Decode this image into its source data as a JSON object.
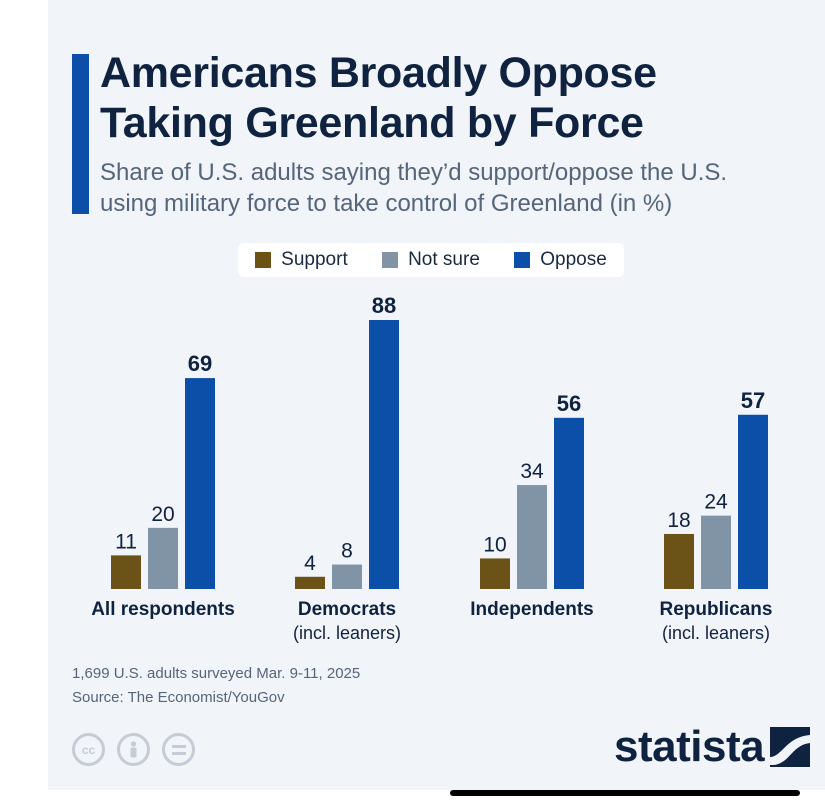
{
  "header": {
    "title_line1": "Americans Broadly Oppose",
    "title_line2": "Taking Greenland by Force",
    "subtitle_line1": "Share of U.S. adults saying they’d support/oppose the U.S.",
    "subtitle_line2": "using military force to take control of Greenland (in %)"
  },
  "legend": [
    {
      "label": "Support",
      "color": "#6b5318"
    },
    {
      "label": "Not sure",
      "color": "#8094a6"
    },
    {
      "label": "Oppose",
      "color": "#0b4fa8"
    }
  ],
  "chart_data": {
    "type": "bar",
    "title": "Americans Broadly Oppose Taking Greenland by Force",
    "subtitle": "Share of U.S. adults saying they’d support/oppose the U.S. using military force to take control of Greenland (in %)",
    "categories": [
      [
        "All respondents"
      ],
      [
        "Democrats",
        "(incl. leaners)"
      ],
      [
        "Independents"
      ],
      [
        "Republicans",
        "(incl. leaners)"
      ]
    ],
    "series": [
      {
        "name": "Support",
        "color": "#6b5318",
        "values": [
          11,
          4,
          10,
          18
        ]
      },
      {
        "name": "Not sure",
        "color": "#8094a6",
        "values": [
          20,
          8,
          34,
          24
        ]
      },
      {
        "name": "Oppose",
        "color": "#0b4fa8",
        "values": [
          69,
          88,
          56,
          57
        ]
      }
    ],
    "ylim": [
      0,
      88
    ],
    "grid": false,
    "legend_position": "top"
  },
  "footer": {
    "note": "1,699 U.S. adults surveyed Mar. 9-11, 2025",
    "source": "Source: The Economist/YouGov",
    "logo_text": "statista",
    "cc_icons": [
      "cc-icon",
      "person-icon",
      "equals-icon"
    ]
  }
}
